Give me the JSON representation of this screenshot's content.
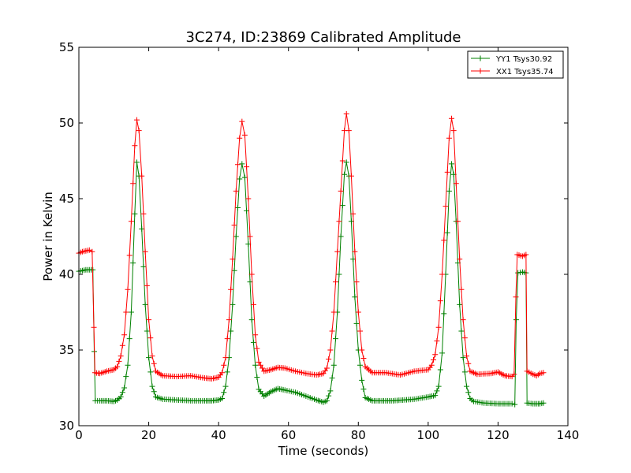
{
  "chart_data": {
    "type": "line",
    "title": "3C274, ID:23869 Calibrated Amplitude",
    "xlabel": "Time (seconds)",
    "ylabel": "Power in Kelvin",
    "xlim": [
      0,
      140
    ],
    "ylim": [
      30,
      55
    ],
    "xticks": [
      0,
      20,
      40,
      60,
      80,
      100,
      120,
      140
    ],
    "yticks": [
      30,
      35,
      40,
      45,
      50,
      55
    ],
    "grid": false,
    "legend_position": "top-right",
    "marker": "plus",
    "series": [
      {
        "name": "YY1 Tsys30.92",
        "color": "#008000",
        "points": [
          [
            0,
            40.2
          ],
          [
            1,
            40.25
          ],
          [
            2,
            40.3
          ],
          [
            3,
            40.3
          ],
          [
            4,
            40.3
          ],
          [
            4.4,
            34.9
          ],
          [
            4.7,
            31.65
          ],
          [
            6,
            31.65
          ],
          [
            8,
            31.65
          ],
          [
            10,
            31.6
          ],
          [
            11,
            31.7
          ],
          [
            12,
            31.9
          ],
          [
            13,
            32.5
          ],
          [
            14,
            34.0
          ],
          [
            15,
            37.5
          ],
          [
            16,
            44.0
          ],
          [
            16.6,
            47.4
          ],
          [
            17.2,
            46.5
          ],
          [
            18,
            43.0
          ],
          [
            19,
            38.0
          ],
          [
            20,
            34.5
          ],
          [
            21,
            32.6
          ],
          [
            22,
            31.9
          ],
          [
            24,
            31.75
          ],
          [
            28,
            31.7
          ],
          [
            32,
            31.65
          ],
          [
            36,
            31.65
          ],
          [
            38,
            31.65
          ],
          [
            40,
            31.7
          ],
          [
            41,
            31.8
          ],
          [
            42,
            32.6
          ],
          [
            43,
            34.5
          ],
          [
            44,
            38.0
          ],
          [
            45,
            42.5
          ],
          [
            46,
            46.3
          ],
          [
            46.7,
            47.3
          ],
          [
            47.5,
            46.4
          ],
          [
            48.5,
            42.0
          ],
          [
            49.5,
            37.0
          ],
          [
            50.5,
            34.0
          ],
          [
            51.5,
            32.4
          ],
          [
            53,
            31.95
          ],
          [
            55,
            32.25
          ],
          [
            57,
            32.45
          ],
          [
            59,
            32.35
          ],
          [
            62,
            32.2
          ],
          [
            65,
            31.95
          ],
          [
            68,
            31.7
          ],
          [
            70,
            31.55
          ],
          [
            71,
            31.65
          ],
          [
            72,
            32.3
          ],
          [
            73,
            34.0
          ],
          [
            74,
            37.5
          ],
          [
            75,
            42.5
          ],
          [
            76,
            46.6
          ],
          [
            76.6,
            47.4
          ],
          [
            77.3,
            46.5
          ],
          [
            78,
            43.5
          ],
          [
            79,
            38.5
          ],
          [
            80,
            35.0
          ],
          [
            81,
            33.0
          ],
          [
            82,
            31.85
          ],
          [
            84,
            31.65
          ],
          [
            90,
            31.65
          ],
          [
            96,
            31.75
          ],
          [
            100,
            31.9
          ],
          [
            102,
            32.0
          ],
          [
            103,
            32.6
          ],
          [
            104,
            34.8
          ],
          [
            105,
            40.0
          ],
          [
            106,
            45.5
          ],
          [
            106.7,
            47.3
          ],
          [
            107.3,
            46.6
          ],
          [
            108,
            43.5
          ],
          [
            109,
            38.0
          ],
          [
            110,
            34.5
          ],
          [
            111,
            32.6
          ],
          [
            112,
            31.8
          ],
          [
            113,
            31.6
          ],
          [
            116,
            31.5
          ],
          [
            120,
            31.45
          ],
          [
            124,
            31.45
          ],
          [
            124.8,
            31.4
          ],
          [
            125.2,
            37.0
          ],
          [
            125.7,
            40.1
          ],
          [
            127,
            40.15
          ],
          [
            128,
            40.1
          ],
          [
            128.3,
            31.5
          ],
          [
            130,
            31.45
          ],
          [
            132,
            31.45
          ],
          [
            133,
            31.5
          ]
        ]
      },
      {
        "name": "XX1 Tsys35.74",
        "color": "#ff0000",
        "points": [
          [
            0,
            41.4
          ],
          [
            1,
            41.5
          ],
          [
            2,
            41.55
          ],
          [
            3,
            41.6
          ],
          [
            3.8,
            41.5
          ],
          [
            4.3,
            36.5
          ],
          [
            4.6,
            33.5
          ],
          [
            6,
            33.45
          ],
          [
            8,
            33.6
          ],
          [
            10,
            33.7
          ],
          [
            11,
            33.9
          ],
          [
            12,
            34.6
          ],
          [
            13,
            36.0
          ],
          [
            14,
            39.0
          ],
          [
            15,
            43.5
          ],
          [
            16,
            48.5
          ],
          [
            16.6,
            50.2
          ],
          [
            17.2,
            49.5
          ],
          [
            18,
            46.5
          ],
          [
            19,
            41.5
          ],
          [
            20,
            37.0
          ],
          [
            21,
            34.6
          ],
          [
            22,
            33.6
          ],
          [
            24,
            33.3
          ],
          [
            28,
            33.25
          ],
          [
            32,
            33.3
          ],
          [
            36,
            33.15
          ],
          [
            38,
            33.1
          ],
          [
            40,
            33.2
          ],
          [
            41,
            33.5
          ],
          [
            42,
            34.5
          ],
          [
            43,
            37.0
          ],
          [
            44,
            41.0
          ],
          [
            45,
            45.5
          ],
          [
            46,
            49.0
          ],
          [
            46.7,
            50.1
          ],
          [
            47.5,
            49.2
          ],
          [
            48.5,
            45.0
          ],
          [
            49.5,
            40.0
          ],
          [
            50.5,
            36.0
          ],
          [
            51.5,
            34.2
          ],
          [
            53,
            33.6
          ],
          [
            55,
            33.7
          ],
          [
            57,
            33.85
          ],
          [
            59,
            33.8
          ],
          [
            62,
            33.6
          ],
          [
            65,
            33.45
          ],
          [
            68,
            33.35
          ],
          [
            70,
            33.45
          ],
          [
            71,
            33.8
          ],
          [
            72,
            35.0
          ],
          [
            73,
            37.5
          ],
          [
            74,
            41.5
          ],
          [
            75,
            45.5
          ],
          [
            76,
            49.5
          ],
          [
            76.6,
            50.6
          ],
          [
            77.3,
            49.5
          ],
          [
            78,
            46.5
          ],
          [
            79,
            41.5
          ],
          [
            80,
            37.5
          ],
          [
            81,
            35.0
          ],
          [
            82,
            33.9
          ],
          [
            84,
            33.5
          ],
          [
            88,
            33.5
          ],
          [
            92,
            33.35
          ],
          [
            96,
            33.6
          ],
          [
            100,
            33.7
          ],
          [
            101,
            34.0
          ],
          [
            102,
            34.7
          ],
          [
            103,
            36.5
          ],
          [
            104,
            40.0
          ],
          [
            105,
            44.5
          ],
          [
            106,
            49.0
          ],
          [
            106.7,
            50.3
          ],
          [
            107.3,
            49.5
          ],
          [
            108,
            46.0
          ],
          [
            109,
            41.0
          ],
          [
            110,
            37.0
          ],
          [
            111,
            34.6
          ],
          [
            112,
            33.6
          ],
          [
            114,
            33.4
          ],
          [
            118,
            33.45
          ],
          [
            120,
            33.55
          ],
          [
            122,
            33.3
          ],
          [
            124,
            33.25
          ],
          [
            124.6,
            33.4
          ],
          [
            125.1,
            38.5
          ],
          [
            125.5,
            41.3
          ],
          [
            127,
            41.2
          ],
          [
            128,
            41.3
          ],
          [
            128.3,
            33.6
          ],
          [
            130,
            33.4
          ],
          [
            131,
            33.3
          ],
          [
            132,
            33.45
          ],
          [
            133,
            33.5
          ]
        ]
      }
    ]
  }
}
